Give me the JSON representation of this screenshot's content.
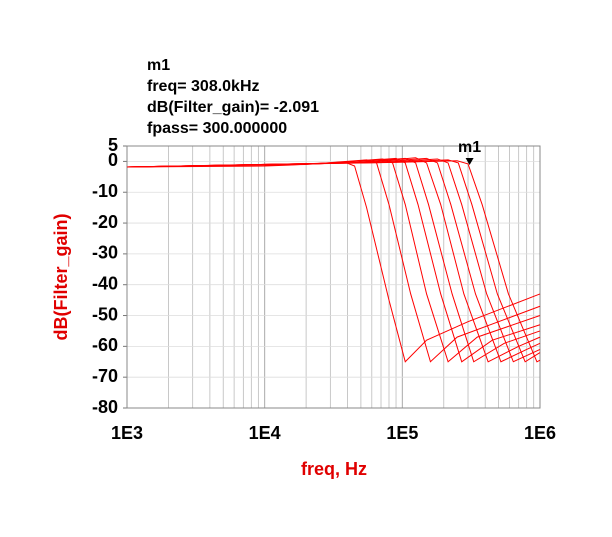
{
  "chart_data": {
    "type": "line",
    "annotations": [
      "m1",
      "freq= 308.0kHz",
      "dB(Filter_gain)= -2.091",
      "fpass= 300.000000"
    ],
    "marker": {
      "label": "m1",
      "x": 308000,
      "y": -2.091
    },
    "xlabel": "freq, Hz",
    "ylabel": "dB(Filter_gain)",
    "xscale": "log",
    "grid": true,
    "minor_grid": true,
    "xlim": [
      1000,
      1000000
    ],
    "xticks": [
      {
        "value": 1000,
        "label": "1E3"
      },
      {
        "value": 10000,
        "label": "1E4"
      },
      {
        "value": 100000,
        "label": "1E5"
      },
      {
        "value": 1000000,
        "label": "1E6"
      }
    ],
    "ylim": [
      -80,
      5
    ],
    "yticks": [
      5,
      0,
      -10,
      -20,
      -30,
      -40,
      -50,
      -60,
      -70,
      -80
    ],
    "series": [
      {
        "color": "#ff0000",
        "x": [
          1000,
          10000,
          15000,
          38000,
          45000,
          55000,
          80000,
          105000,
          150000,
          300000,
          1000000
        ],
        "values": [
          -1.8,
          -1.5,
          -1.2,
          -0.2,
          -1.5,
          -15,
          -45,
          -65,
          -58,
          -52,
          -43
        ]
      },
      {
        "color": "#ff0000",
        "x": [
          1000,
          20000,
          55000,
          65000,
          80000,
          115000,
          160000,
          250000,
          500000,
          1000000
        ],
        "values": [
          -1.8,
          -1,
          0.5,
          -0.5,
          -14,
          -43,
          -65,
          -57,
          -52,
          -47
        ]
      },
      {
        "color": "#ff0000",
        "x": [
          1000,
          25000,
          72000,
          85000,
          105000,
          150000,
          215000,
          350000,
          1000000
        ],
        "values": [
          -1.8,
          -0.8,
          0.8,
          -0.5,
          -14,
          -43,
          -65,
          -57,
          -50
        ]
      },
      {
        "color": "#ff0000",
        "x": [
          1000,
          30000,
          90000,
          105000,
          130000,
          190000,
          270000,
          450000,
          1000000
        ],
        "values": [
          -1.8,
          -0.6,
          1,
          -0.5,
          -14,
          -43,
          -65,
          -58,
          -53
        ]
      },
      {
        "color": "#ff0000",
        "x": [
          1000,
          40000,
          105000,
          125000,
          155000,
          230000,
          330000,
          550000,
          1000000
        ],
        "values": [
          -1.8,
          -0.5,
          1,
          -0.5,
          -14,
          -43,
          -65,
          -59,
          -55
        ]
      },
      {
        "color": "#ff0000",
        "x": [
          1000,
          50000,
          125000,
          150000,
          190000,
          280000,
          420000,
          700000,
          1000000
        ],
        "values": [
          -1.8,
          -0.4,
          1.2,
          -0.5,
          -14,
          -43,
          -65,
          -60,
          -57
        ]
      },
      {
        "color": "#ff0000",
        "x": [
          1000,
          60000,
          150000,
          180000,
          225000,
          340000,
          520000,
          800000,
          1000000
        ],
        "values": [
          -1.8,
          -0.3,
          1,
          -0.5,
          -14,
          -43,
          -65,
          -61,
          -59
        ]
      },
      {
        "color": "#ff0000",
        "x": [
          1000,
          70000,
          180000,
          215000,
          270000,
          410000,
          640000,
          1000000
        ],
        "values": [
          -1.8,
          -0.3,
          0.8,
          -0.5,
          -14,
          -43,
          -65,
          -61
        ]
      },
      {
        "color": "#ff0000",
        "x": [
          1000,
          80000,
          215000,
          255000,
          320000,
          490000,
          780000,
          1000000
        ],
        "values": [
          -1.8,
          -0.3,
          0.5,
          -0.5,
          -14,
          -43,
          -65,
          -62
        ]
      },
      {
        "color": "#ff0000",
        "x": [
          1000,
          90000,
          250000,
          300000,
          380000,
          590000,
          950000,
          1000000
        ],
        "values": [
          -1.8,
          -0.3,
          0.2,
          -0.8,
          -14,
          -43,
          -65,
          -64.5
        ]
      }
    ]
  }
}
